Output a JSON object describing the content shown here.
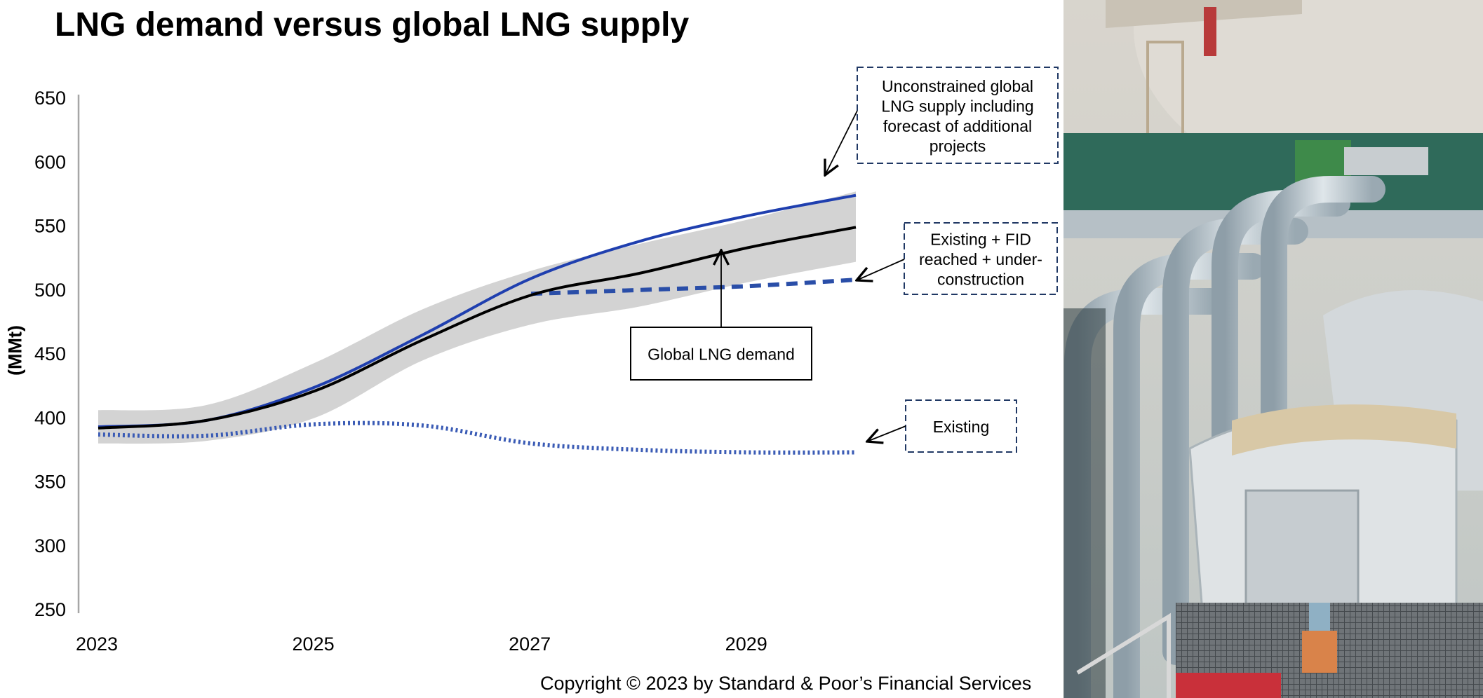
{
  "chart_data": {
    "type": "line",
    "title": "LNG demand versus global LNG supply",
    "ylabel": "(MMt)",
    "xlabel": "",
    "ylim": [
      250,
      650
    ],
    "xlim": [
      2023,
      2030
    ],
    "yticks": [
      250,
      300,
      350,
      400,
      450,
      500,
      550,
      600,
      650
    ],
    "xticks": [
      2023,
      2025,
      2027,
      2029
    ],
    "grid": false,
    "legend": "none (inline callout annotations)",
    "x": [
      2023,
      2024,
      2025,
      2026,
      2027,
      2028,
      2029,
      2030
    ],
    "band": {
      "lower": [
        380,
        382,
        400,
        445,
        473,
        487,
        506,
        522
      ],
      "upper": [
        406,
        410,
        443,
        485,
        515,
        536,
        555,
        577
      ]
    },
    "series": [
      {
        "label": "Unconstrained global LNG supply including forecast of additional projects",
        "color": "#1f3faf",
        "style": "solid",
        "values": [
          393,
          398,
          424,
          465,
          509,
          538,
          558,
          574
        ]
      },
      {
        "label": "Global LNG demand",
        "color": "#000000",
        "style": "solid",
        "values": [
          392,
          398,
          421,
          461,
          496,
          513,
          533,
          549
        ]
      },
      {
        "label": "Existing + FID reached + under-construction",
        "color": "#2a4ea8",
        "style": "dashed",
        "x": [
          2027,
          2028,
          2029,
          2030
        ],
        "values": [
          497,
          500,
          503,
          508
        ]
      },
      {
        "label": "Existing",
        "color": "#3a5bb5",
        "style": "dotted",
        "values": [
          387,
          386,
          395,
          394,
          380,
          375,
          373,
          373
        ]
      }
    ],
    "annotations": [
      {
        "text": "Unconstrained global LNG supply including forecast of additional projects"
      },
      {
        "text": "Existing + FID reached + under-construction"
      },
      {
        "text": "Global LNG demand"
      },
      {
        "text": "Existing"
      }
    ]
  },
  "page": {
    "copyright": "Copyright © 2023 by Standard & Poor’s Financial Services"
  },
  "colors": {
    "band": "#d3d3d3",
    "axis": "#a6a6a6",
    "callout_border_dashed": "#203864"
  }
}
